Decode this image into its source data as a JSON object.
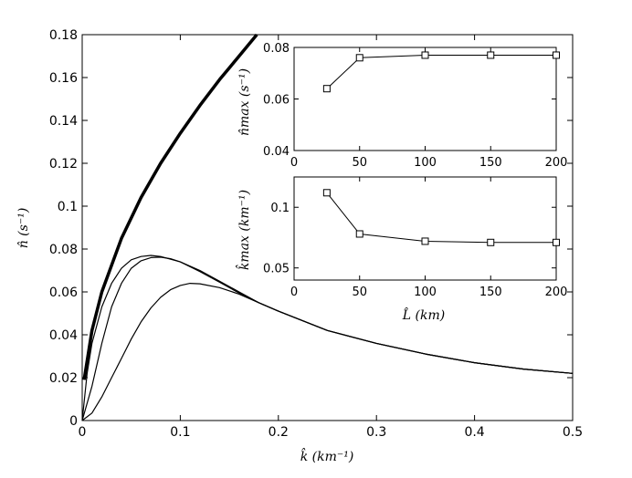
{
  "chart_data": [
    {
      "type": "line",
      "panel": "main",
      "xlabel": "k̂ (km⁻¹)",
      "ylabel": "n̂ (s⁻¹)",
      "xlim": [
        0,
        0.5
      ],
      "ylim": [
        0,
        0.18
      ],
      "x_ticks": [
        0,
        0.1,
        0.2,
        0.3,
        0.4,
        0.5
      ],
      "x_tick_labels": [
        "0",
        "0.1",
        "0.2",
        "0.3",
        "0.4",
        "0.5"
      ],
      "y_ticks": [
        0,
        0.02,
        0.04,
        0.06,
        0.08,
        0.1,
        0.12,
        0.14,
        0.16,
        0.18
      ],
      "y_tick_labels": [
        "0",
        "0.02",
        "0.04",
        "0.06",
        "0.08",
        "0.1",
        "0.12",
        "0.14",
        "0.16",
        "0.18"
      ],
      "grid": false,
      "series": [
        {
          "x": [
            0.002,
            0.01,
            0.02,
            0.04,
            0.06,
            0.08,
            0.1,
            0.12,
            0.14,
            0.16,
            0.178
          ],
          "y": [
            0.019,
            0.042,
            0.06,
            0.085,
            0.104,
            0.12,
            0.134,
            0.147,
            0.159,
            0.17,
            0.18
          ]
        },
        {
          "x": [
            0,
            0.005,
            0.01,
            0.02,
            0.03,
            0.04,
            0.05,
            0.06,
            0.07,
            0.08,
            0.1,
            0.12,
            0.14,
            0.16,
            0.18,
            0.2,
            0.25,
            0.3,
            0.35,
            0.4,
            0.45,
            0.5
          ],
          "y": [
            0,
            0.022,
            0.036,
            0.053,
            0.064,
            0.071,
            0.075,
            0.0765,
            0.077,
            0.0765,
            0.074,
            0.07,
            0.065,
            0.06,
            0.055,
            0.051,
            0.042,
            0.036,
            0.031,
            0.027,
            0.024,
            0.022
          ]
        },
        {
          "x": [
            0,
            0.01,
            0.02,
            0.03,
            0.04,
            0.05,
            0.06,
            0.07,
            0.08,
            0.09,
            0.1,
            0.12,
            0.14,
            0.16,
            0.18,
            0.2,
            0.25,
            0.3,
            0.35,
            0.4,
            0.45,
            0.5
          ],
          "y": [
            0,
            0.016,
            0.036,
            0.053,
            0.064,
            0.071,
            0.0745,
            0.076,
            0.0762,
            0.0755,
            0.074,
            0.0695,
            0.0645,
            0.0595,
            0.055,
            0.051,
            0.042,
            0.036,
            0.031,
            0.027,
            0.024,
            0.022
          ]
        },
        {
          "x": [
            0,
            0.01,
            0.02,
            0.03,
            0.04,
            0.05,
            0.06,
            0.07,
            0.08,
            0.09,
            0.1,
            0.11,
            0.12,
            0.14,
            0.16,
            0.18,
            0.2,
            0.25,
            0.3,
            0.35,
            0.4,
            0.45,
            0.5
          ],
          "y": [
            0,
            0.0035,
            0.011,
            0.02,
            0.029,
            0.038,
            0.046,
            0.0525,
            0.0575,
            0.061,
            0.063,
            0.064,
            0.0638,
            0.062,
            0.059,
            0.055,
            0.051,
            0.042,
            0.036,
            0.031,
            0.027,
            0.024,
            0.022
          ]
        }
      ]
    },
    {
      "type": "line",
      "panel": "inset-top",
      "xlabel": "",
      "ylabel": "n̂max (s⁻¹)",
      "xlim": [
        0,
        200
      ],
      "ylim": [
        0.04,
        0.08
      ],
      "x_ticks": [
        0,
        50,
        100,
        150,
        200
      ],
      "x_tick_labels": [
        "0",
        "50",
        "100",
        "150",
        "200"
      ],
      "y_ticks": [
        0.04,
        0.06,
        0.08
      ],
      "y_tick_labels": [
        "0.04",
        "0.06",
        "0.08"
      ],
      "grid": false,
      "marker": "square",
      "x": [
        25,
        50,
        100,
        150,
        200
      ],
      "y": [
        0.064,
        0.076,
        0.077,
        0.077,
        0.077
      ]
    },
    {
      "type": "line",
      "panel": "inset-bottom",
      "xlabel": "L̂ (km)",
      "ylabel": "k̂max (km⁻¹)",
      "xlim": [
        0,
        200
      ],
      "ylim": [
        0.04,
        0.125
      ],
      "x_ticks": [
        0,
        50,
        100,
        150,
        200
      ],
      "x_tick_labels": [
        "0",
        "50",
        "100",
        "150",
        "200"
      ],
      "y_ticks": [
        0.05,
        0.1
      ],
      "y_tick_labels": [
        "0.05",
        "0.1"
      ],
      "grid": false,
      "marker": "square",
      "x": [
        25,
        50,
        100,
        150,
        200
      ],
      "y": [
        0.112,
        0.078,
        0.072,
        0.071,
        0.071
      ]
    }
  ]
}
